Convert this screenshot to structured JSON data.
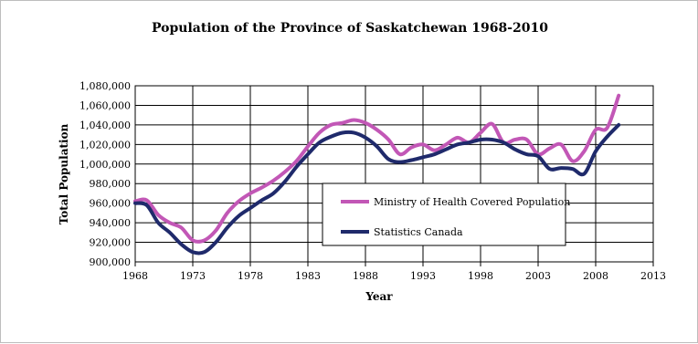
{
  "chart_data": {
    "type": "line",
    "title": "Population of the Province of Saskatchewan 1968-2010",
    "xlabel": "Year",
    "ylabel": "Total Population",
    "xlim": [
      1968,
      2013
    ],
    "ylim": [
      900000,
      1080000
    ],
    "x_ticks": [
      "1968",
      "1973",
      "1978",
      "1983",
      "1988",
      "1993",
      "1998",
      "2003",
      "2008",
      "2013"
    ],
    "y_ticks": [
      "900,000",
      "920,000",
      "940,000",
      "960,000",
      "980,000",
      "1,000,000",
      "1,020,000",
      "1,040,000",
      "1,060,000",
      "1,080,000"
    ],
    "grid": true,
    "legend_position": "center-right",
    "series": [
      {
        "name": "Ministry of  Health Covered Population",
        "color": "#c257b6",
        "x": [
          1968,
          1969,
          1970,
          1971,
          1972,
          1973,
          1974,
          1975,
          1976,
          1977,
          1978,
          1979,
          1980,
          1981,
          1982,
          1983,
          1984,
          1985,
          1986,
          1987,
          1988,
          1989,
          1990,
          1991,
          1992,
          1993,
          1994,
          1995,
          1996,
          1997,
          1998,
          1999,
          2000,
          2001,
          2002,
          2003,
          2004,
          2005,
          2006,
          2007,
          2008,
          2009,
          2010
        ],
        "values": [
          962000,
          963000,
          948000,
          940000,
          935000,
          922000,
          922000,
          932000,
          950000,
          962000,
          970000,
          976000,
          983000,
          992000,
          1003000,
          1018000,
          1032000,
          1040000,
          1042000,
          1045000,
          1042000,
          1035000,
          1025000,
          1010000,
          1017000,
          1020000,
          1014000,
          1020000,
          1027000,
          1022000,
          1032000,
          1041000,
          1022000,
          1025000,
          1025000,
          1010000,
          1016000,
          1020000,
          1003000,
          1013000,
          1035000,
          1037000,
          1070000
        ]
      },
      {
        "name": "Statistics Canada",
        "color": "#1f2a6b",
        "x": [
          1968,
          1969,
          1970,
          1971,
          1972,
          1973,
          1974,
          1975,
          1976,
          1977,
          1978,
          1979,
          1980,
          1981,
          1982,
          1983,
          1984,
          1985,
          1986,
          1987,
          1988,
          1989,
          1990,
          1991,
          1992,
          1993,
          1994,
          1995,
          1996,
          1997,
          1998,
          1999,
          2000,
          2001,
          2002,
          2003,
          2004,
          2005,
          2006,
          2007,
          2008,
          2009,
          2010
        ],
        "values": [
          960000,
          958000,
          940000,
          930000,
          918000,
          910000,
          910000,
          920000,
          935000,
          947000,
          955000,
          963000,
          970000,
          982000,
          997000,
          1010000,
          1022000,
          1028000,
          1032000,
          1032000,
          1027000,
          1018000,
          1005000,
          1002000,
          1004000,
          1007000,
          1010000,
          1015000,
          1020000,
          1022000,
          1025000,
          1025000,
          1022000,
          1015000,
          1010000,
          1008000,
          995000,
          996000,
          995000,
          990000,
          1013000,
          1028000,
          1040000
        ]
      }
    ]
  }
}
